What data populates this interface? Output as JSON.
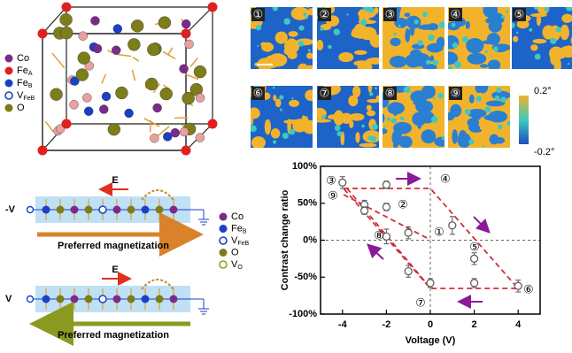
{
  "crystal_legend": [
    {
      "text": "Co"
    },
    {
      "text": "Fe",
      "sub": "A"
    },
    {
      "text": "Fe",
      "sub": "B"
    },
    {
      "text": "V",
      "sub": "FeB"
    },
    {
      "text": "O"
    }
  ],
  "maps": {
    "labels": [
      "①",
      "②",
      "③",
      "④",
      "⑤",
      "⑥",
      "⑦",
      "⑧",
      "⑨"
    ],
    "colorbar": [
      "0.2°",
      "-0.2°"
    ]
  },
  "schematic": {
    "top": {
      "voltage": "-V",
      "field": "E",
      "caption": "Preferred magnetization"
    },
    "bottom": {
      "voltage": "V",
      "field": "E",
      "caption": "Preferred magnetization"
    },
    "legend": [
      {
        "text": "Co"
      },
      {
        "text": "Fe",
        "sub": "B"
      },
      {
        "text": "V",
        "sub": "FeB"
      },
      {
        "text": "O"
      },
      {
        "text": "V",
        "sub": "O"
      }
    ]
  },
  "chart_data": {
    "type": "scatter",
    "xlabel": "Voltage (V)",
    "ylabel": "Contrast change ratio",
    "x": [
      -4,
      -3,
      -3,
      -2,
      -2,
      -2,
      -1,
      -1,
      0,
      1,
      2,
      2,
      4
    ],
    "values": [
      78,
      48,
      40,
      75,
      45,
      5,
      10,
      -42,
      -58,
      20,
      -25,
      -58,
      -62
    ],
    "errors": [
      8,
      6,
      5,
      5,
      5,
      10,
      8,
      8,
      6,
      12,
      8,
      6,
      8
    ],
    "color": "#555555",
    "xlim": [
      -5,
      5
    ],
    "ylim": [
      -100,
      100
    ],
    "xticks": [
      -4,
      -2,
      0,
      2,
      4
    ],
    "yticks": [
      {
        "value": -100,
        "label": "-100%"
      },
      {
        "value": -50,
        "label": "-50%"
      },
      {
        "value": 0,
        "label": "0%"
      },
      {
        "value": 50,
        "label": "50%"
      },
      {
        "value": 100,
        "label": "100%"
      }
    ],
    "annotations": [
      "③",
      "⑨",
      "④",
      "②",
      "①",
      "⑧",
      "⑤",
      "⑦",
      "⑥"
    ]
  }
}
